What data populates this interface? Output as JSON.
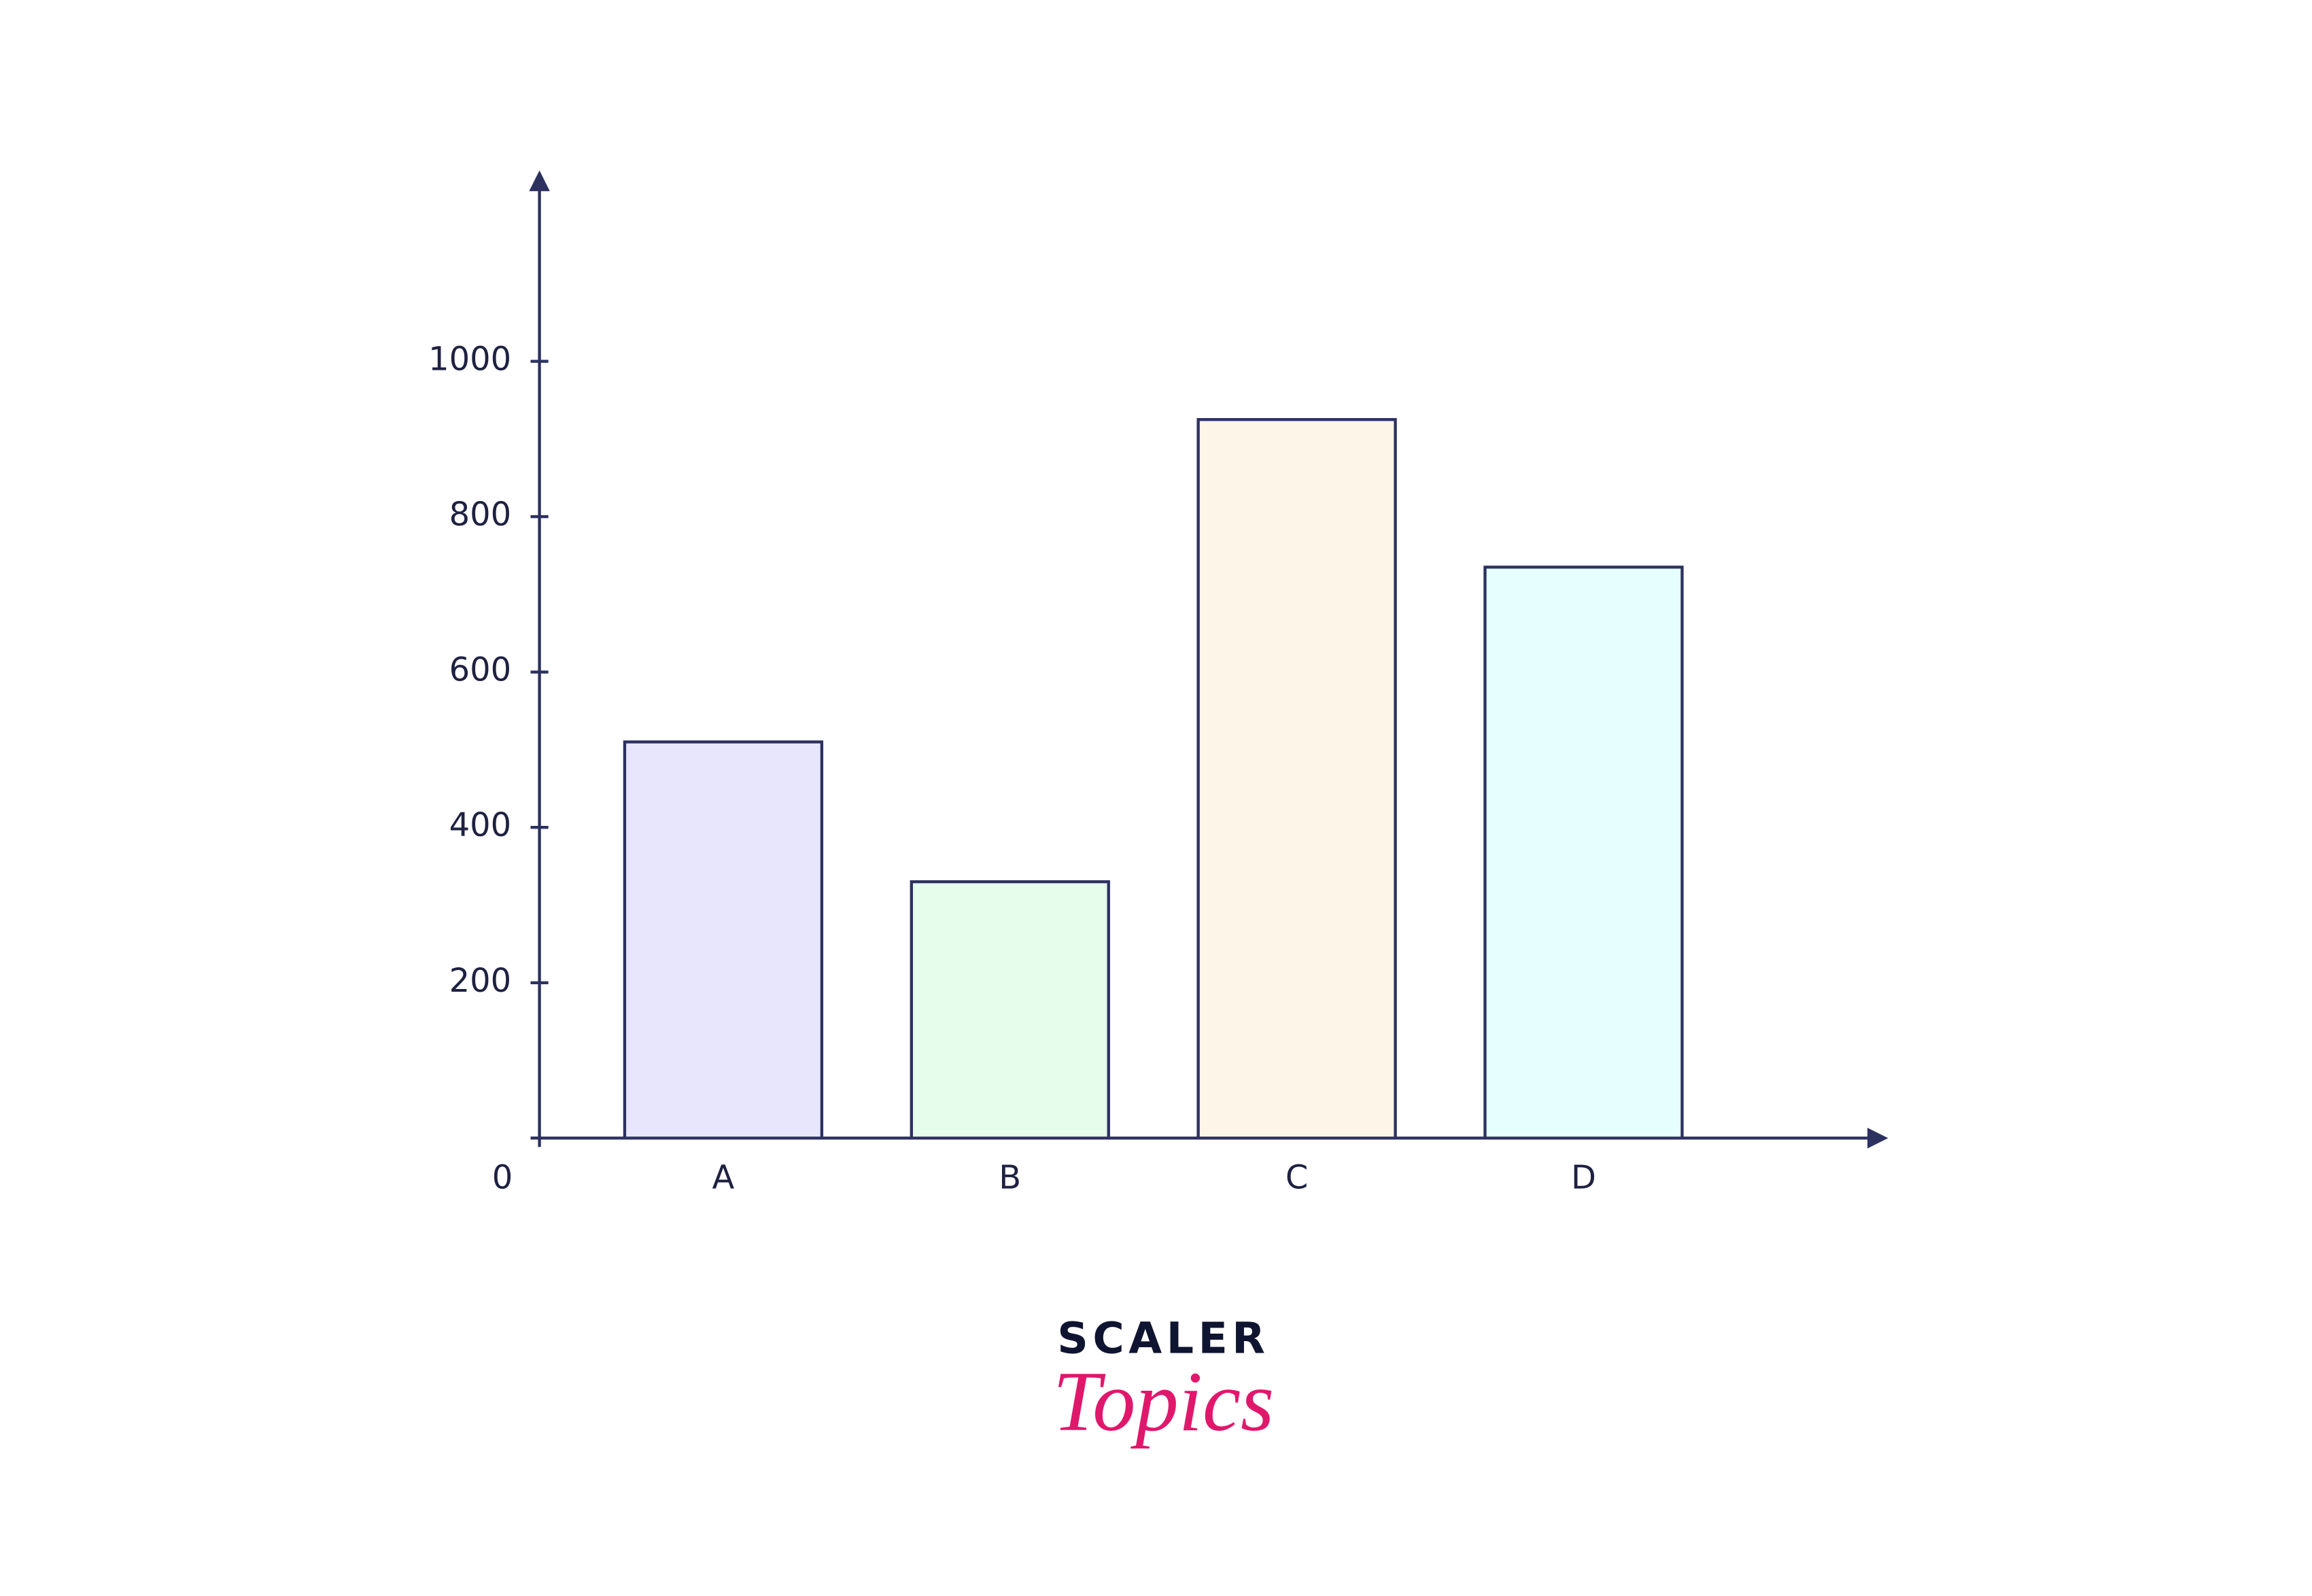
{
  "chart_data": {
    "type": "bar",
    "categories": [
      "A",
      "B",
      "C",
      "D"
    ],
    "values": [
      510,
      330,
      925,
      735
    ],
    "colors": [
      "#e8e6fd",
      "#e6fdec",
      "#fdf5e8",
      "#e6fefd"
    ],
    "ylim": [
      0,
      1240
    ],
    "yticks": [
      0,
      200,
      400,
      600,
      800,
      1000
    ],
    "grid": false
  },
  "logo": {
    "line1": "SCALER",
    "line2": "Topics"
  }
}
